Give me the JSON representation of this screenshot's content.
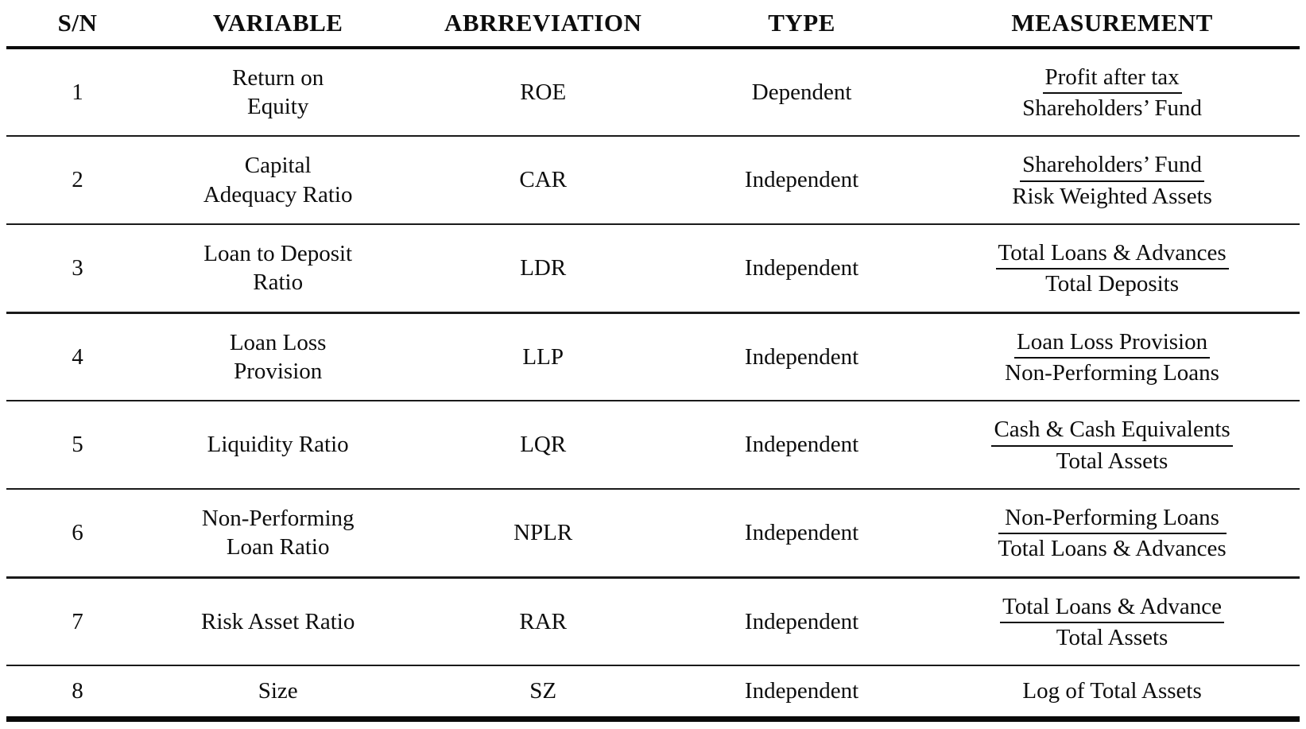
{
  "table": {
    "columns": [
      {
        "label": "S/N"
      },
      {
        "label": "VARIABLE"
      },
      {
        "label": "ABRREVIATION"
      },
      {
        "label": "TYPE"
      },
      {
        "label": "MEASUREMENT"
      }
    ],
    "rows": [
      {
        "sn": "1",
        "variable_lines": [
          "Return on",
          "Equity"
        ],
        "abbreviation": "ROE",
        "type": "Dependent",
        "measurement": {
          "numerator": "Profit after tax",
          "denominator": "Shareholders’ Fund",
          "rule": "numerator"
        }
      },
      {
        "sn": "2",
        "variable_lines": [
          "Capital",
          "Adequacy Ratio"
        ],
        "abbreviation": "CAR",
        "type": "Independent",
        "measurement": {
          "numerator": "Shareholders’ Fund",
          "denominator": "Risk Weighted Assets",
          "rule": "numerator"
        }
      },
      {
        "sn": "3",
        "variable_lines": [
          "Loan to Deposit",
          "Ratio"
        ],
        "abbreviation": "LDR",
        "type": "Independent",
        "measurement": {
          "numerator": "Total Loans & Advances",
          "denominator": "Total Deposits",
          "rule": "numerator"
        }
      },
      {
        "sn": "4",
        "variable_lines": [
          "Loan Loss",
          "Provision"
        ],
        "abbreviation": "LLP",
        "type": "Independent",
        "measurement": {
          "numerator": "Loan Loss Provision",
          "denominator": "Non-Performing Loans",
          "rule": "numerator"
        }
      },
      {
        "sn": "5",
        "variable_lines": [
          "Liquidity Ratio"
        ],
        "abbreviation": "LQR",
        "type": "Independent",
        "measurement": {
          "numerator": "Cash & Cash Equivalents",
          "denominator": "Total Assets",
          "rule": "numerator"
        }
      },
      {
        "sn": "6",
        "variable_lines": [
          "Non-Performing",
          "Loan Ratio"
        ],
        "abbreviation": "NPLR",
        "type": "Independent",
        "measurement": {
          "numerator": "Non-Performing Loans",
          "denominator": "Total Loans & Advances",
          "rule": "full"
        }
      },
      {
        "sn": "7",
        "variable_lines": [
          "Risk Asset Ratio"
        ],
        "abbreviation": "RAR",
        "type": "Independent",
        "measurement": {
          "numerator": "Total Loans & Advance",
          "denominator": "Total Assets",
          "rule": "numerator"
        }
      },
      {
        "sn": "8",
        "variable_lines": [
          "Size"
        ],
        "abbreviation": "SZ",
        "type": "Independent",
        "measurement": {
          "text": "Log of Total Assets"
        }
      }
    ]
  }
}
